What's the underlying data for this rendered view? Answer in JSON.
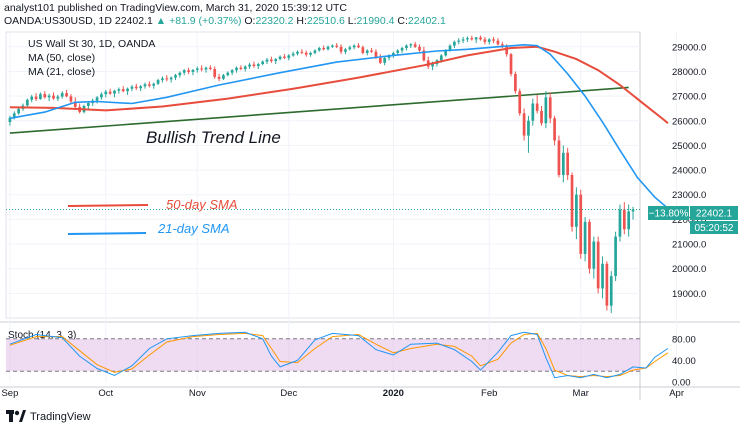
{
  "header": {
    "publisher_line": "analyst101 published on TradingView.com, March 31, 2020 15:39:12 UTC",
    "symbol": "OANDA:US30USD, 1D",
    "last": "22402.1",
    "change": "▲ +81.9 (+0.37%)",
    "o_label": "O:",
    "o_value": "22320.2",
    "h_label": "H:",
    "h_value": "22510.6",
    "l_label": "L:",
    "l_value": "21990.4",
    "c_label": "C:",
    "c_value": "22402.1"
  },
  "legend": {
    "symbol_name": "US Wall St 30, 1D, OANDA",
    "ma50": "MA (50, close)",
    "ma21": "MA (21, close)"
  },
  "annotations": {
    "trend_line": "Bullish Trend Line",
    "sma50": "50-day SMA",
    "sma21": "21-day SMA"
  },
  "price_tags": {
    "change_pct": "−13.80%",
    "price": "22402.1",
    "countdown": "05:20:52"
  },
  "stoch_label": "Stoch (14, 3, 3)",
  "footer": {
    "brand": "TradingView"
  },
  "colors": {
    "up": "#26a69a",
    "down": "#ef5350",
    "ma50": "#e74c3c",
    "ma21": "#2196f3",
    "trend": "#2e6b2e",
    "stoch_bg": "#e1bee7",
    "stoch_k": "#2196f3",
    "stoch_d": "#ff9800"
  },
  "chart_data": {
    "type": "candlestick",
    "y_ticks": [
      19000,
      20000,
      21000,
      22000,
      23000,
      24000,
      25000,
      26000,
      27000,
      28000,
      29000
    ],
    "ylim": [
      18000,
      29600
    ],
    "x_ticks": [
      "Sep",
      "Oct",
      "Nov",
      "Dec",
      "2020",
      "Feb",
      "Mar",
      "Apr"
    ],
    "x_tick_days": [
      0,
      22,
      43,
      64,
      88,
      110,
      131,
      153
    ],
    "candles": [
      [
        25950,
        26200,
        25800,
        26120
      ],
      [
        26120,
        26380,
        26050,
        26300
      ],
      [
        26300,
        26550,
        26250,
        26480
      ],
      [
        26480,
        26700,
        26400,
        26620
      ],
      [
        26620,
        26900,
        26550,
        26850
      ],
      [
        26850,
        27050,
        26750,
        26980
      ],
      [
        26980,
        27120,
        26800,
        26880
      ],
      [
        26880,
        27150,
        26850,
        27080
      ],
      [
        27080,
        27200,
        26900,
        26950
      ],
      [
        26950,
        27100,
        26800,
        27020
      ],
      [
        27020,
        27150,
        26850,
        26900
      ],
      [
        26900,
        27050,
        26800,
        26980
      ],
      [
        26980,
        27200,
        26900,
        27120
      ],
      [
        27120,
        27250,
        26950,
        26990
      ],
      [
        26990,
        27080,
        26700,
        26780
      ],
      [
        26780,
        26950,
        26500,
        26560
      ],
      [
        26560,
        26700,
        26300,
        26350
      ],
      [
        26350,
        26650,
        26300,
        26600
      ],
      [
        26600,
        26800,
        26450,
        26720
      ],
      [
        26720,
        26900,
        26600,
        26820
      ],
      [
        26820,
        27000,
        26700,
        26950
      ],
      [
        26950,
        27150,
        26850,
        27080
      ],
      [
        27080,
        27250,
        26950,
        27180
      ],
      [
        27180,
        27300,
        27050,
        27100
      ],
      [
        27100,
        27250,
        26950,
        27220
      ],
      [
        27220,
        27350,
        27100,
        27280
      ],
      [
        27280,
        27400,
        27150,
        27200
      ],
      [
        27200,
        27350,
        27050,
        27300
      ],
      [
        27300,
        27450,
        27200,
        27380
      ],
      [
        27380,
        27500,
        27250,
        27320
      ],
      [
        27320,
        27450,
        27200,
        27400
      ],
      [
        27400,
        27550,
        27300,
        27480
      ],
      [
        27480,
        27600,
        27350,
        27420
      ],
      [
        27420,
        27550,
        27300,
        27500
      ],
      [
        27500,
        27700,
        27450,
        27650
      ],
      [
        27650,
        27800,
        27550,
        27720
      ],
      [
        27720,
        27850,
        27600,
        27680
      ],
      [
        27680,
        27800,
        27550,
        27750
      ],
      [
        27750,
        27900,
        27650,
        27850
      ],
      [
        27850,
        28000,
        27750,
        27950
      ],
      [
        27950,
        28100,
        27850,
        28050
      ],
      [
        28050,
        28150,
        27900,
        27980
      ],
      [
        27980,
        28100,
        27850,
        28060
      ],
      [
        28060,
        28200,
        27950,
        28120
      ],
      [
        28120,
        28250,
        28000,
        28080
      ],
      [
        28080,
        28200,
        27950,
        28150
      ],
      [
        28150,
        28250,
        28050,
        28100
      ],
      [
        28100,
        28200,
        27700,
        27780
      ],
      [
        27780,
        27900,
        27600,
        27700
      ],
      [
        27700,
        27900,
        27650,
        27850
      ],
      [
        27850,
        28000,
        27800,
        27950
      ],
      [
        27950,
        28100,
        27850,
        28050
      ],
      [
        28050,
        28200,
        27950,
        28150
      ],
      [
        28150,
        28250,
        28050,
        28100
      ],
      [
        28100,
        28250,
        28000,
        28200
      ],
      [
        28200,
        28350,
        28100,
        28280
      ],
      [
        28280,
        28400,
        28150,
        28220
      ],
      [
        28220,
        28350,
        28100,
        28300
      ],
      [
        28300,
        28450,
        28250,
        28400
      ],
      [
        28400,
        28550,
        28300,
        28480
      ],
      [
        28480,
        28600,
        28350,
        28420
      ],
      [
        28420,
        28550,
        28300,
        28500
      ],
      [
        28500,
        28650,
        28450,
        28600
      ],
      [
        28600,
        28700,
        28500,
        28550
      ],
      [
        28550,
        28700,
        28450,
        28650
      ],
      [
        28650,
        28800,
        28600,
        28720
      ],
      [
        28720,
        28850,
        28650,
        28800
      ],
      [
        28800,
        28900,
        28700,
        28760
      ],
      [
        28760,
        28850,
        28600,
        28680
      ],
      [
        28680,
        28800,
        28600,
        28750
      ],
      [
        28750,
        28900,
        28700,
        28850
      ],
      [
        28850,
        29000,
        28800,
        28950
      ],
      [
        28950,
        29050,
        28850,
        28900
      ],
      [
        28900,
        29050,
        28850,
        29000
      ],
      [
        29000,
        29100,
        28950,
        29050
      ],
      [
        29050,
        29150,
        28950,
        29000
      ],
      [
        29000,
        29100,
        28700,
        28800
      ],
      [
        28800,
        28950,
        28700,
        28900
      ],
      [
        28900,
        29050,
        28850,
        28980
      ],
      [
        28980,
        29100,
        28900,
        29050
      ],
      [
        29050,
        29150,
        28950,
        28980
      ],
      [
        28980,
        29050,
        28700,
        28750
      ],
      [
        28750,
        28900,
        28650,
        28850
      ],
      [
        28850,
        28950,
        28750,
        28800
      ],
      [
        28800,
        28900,
        28500,
        28550
      ],
      [
        28550,
        28700,
        28300,
        28350
      ],
      [
        28350,
        28600,
        28250,
        28550
      ],
      [
        28550,
        28700,
        28450,
        28650
      ],
      [
        28650,
        28800,
        28550,
        28750
      ],
      [
        28750,
        28900,
        28650,
        28850
      ],
      [
        28850,
        29000,
        28750,
        28950
      ],
      [
        28950,
        29100,
        28850,
        29050
      ],
      [
        29050,
        29150,
        28950,
        29100
      ],
      [
        29100,
        29200,
        28950,
        29000
      ],
      [
        29000,
        29100,
        28800,
        28850
      ],
      [
        28850,
        29000,
        28400,
        28450
      ],
      [
        28450,
        28600,
        28100,
        28200
      ],
      [
        28200,
        28400,
        28050,
        28300
      ],
      [
        28300,
        28500,
        28200,
        28450
      ],
      [
        28450,
        28700,
        28350,
        28650
      ],
      [
        28650,
        28900,
        28600,
        28850
      ],
      [
        28850,
        29100,
        28800,
        29050
      ],
      [
        29050,
        29250,
        28950,
        29200
      ],
      [
        29200,
        29350,
        29100,
        29250
      ],
      [
        29250,
        29400,
        29150,
        29300
      ],
      [
        29300,
        29420,
        29200,
        29350
      ],
      [
        29350,
        29450,
        29250,
        29300
      ],
      [
        29300,
        29400,
        29150,
        29380
      ],
      [
        29380,
        29450,
        29250,
        29300
      ],
      [
        29300,
        29400,
        29100,
        29200
      ],
      [
        29200,
        29350,
        29100,
        29300
      ],
      [
        29300,
        29400,
        29150,
        29250
      ],
      [
        29250,
        29350,
        29050,
        29100
      ],
      [
        29100,
        29200,
        28950,
        29050
      ],
      [
        29050,
        29100,
        28600,
        28700
      ],
      [
        28700,
        28750,
        27800,
        27900
      ],
      [
        27900,
        28000,
        27100,
        27200
      ],
      [
        27200,
        27300,
        26200,
        26300
      ],
      [
        26300,
        26500,
        25200,
        25400
      ],
      [
        25400,
        26200,
        24700,
        26000
      ],
      [
        26000,
        26900,
        25800,
        26700
      ],
      [
        26700,
        27050,
        26300,
        26400
      ],
      [
        26400,
        26600,
        25800,
        25900
      ],
      [
        25900,
        27200,
        25700,
        26950
      ],
      [
        26950,
        27150,
        25900,
        26100
      ],
      [
        26100,
        26200,
        25000,
        25200
      ],
      [
        25200,
        25400,
        23700,
        23800
      ],
      [
        23800,
        25000,
        23500,
        24700
      ],
      [
        24700,
        24900,
        23600,
        23800
      ],
      [
        23800,
        23900,
        21500,
        21700
      ],
      [
        21700,
        23300,
        21200,
        23000
      ],
      [
        23000,
        23200,
        20400,
        20600
      ],
      [
        20600,
        22100,
        20300,
        21900
      ],
      [
        21900,
        22000,
        19800,
        20000
      ],
      [
        20000,
        21300,
        19600,
        21100
      ],
      [
        21100,
        21300,
        19000,
        19200
      ],
      [
        19200,
        20500,
        18800,
        20200
      ],
      [
        20200,
        20300,
        18300,
        18500
      ],
      [
        18500,
        19900,
        18200,
        19700
      ],
      [
        19700,
        21500,
        19500,
        21300
      ],
      [
        21300,
        22600,
        21100,
        22400
      ],
      [
        22400,
        22700,
        21400,
        21600
      ],
      [
        21600,
        22600,
        21300,
        22320
      ],
      [
        22320,
        22510.6,
        21990.4,
        22402.1
      ]
    ],
    "ma50": [
      [
        0,
        26550
      ],
      [
        10,
        26520
      ],
      [
        22,
        26420
      ],
      [
        35,
        26580
      ],
      [
        50,
        26900
      ],
      [
        65,
        27300
      ],
      [
        80,
        27750
      ],
      [
        95,
        28250
      ],
      [
        105,
        28650
      ],
      [
        115,
        28950
      ],
      [
        121,
        29000
      ],
      [
        125,
        28800
      ],
      [
        130,
        28500
      ],
      [
        135,
        28050
      ],
      [
        140,
        27450
      ],
      [
        145,
        26750
      ],
      [
        150,
        26050
      ],
      [
        151,
        25900
      ]
    ],
    "ma21": [
      [
        0,
        26100
      ],
      [
        8,
        26350
      ],
      [
        15,
        26750
      ],
      [
        20,
        26780
      ],
      [
        28,
        26700
      ],
      [
        36,
        26950
      ],
      [
        48,
        27450
      ],
      [
        62,
        27950
      ],
      [
        75,
        28380
      ],
      [
        88,
        28650
      ],
      [
        98,
        28830
      ],
      [
        105,
        28900
      ],
      [
        112,
        29000
      ],
      [
        118,
        29080
      ],
      [
        121,
        29050
      ],
      [
        124,
        28700
      ],
      [
        128,
        27900
      ],
      [
        132,
        27000
      ],
      [
        136,
        25950
      ],
      [
        140,
        24800
      ],
      [
        144,
        23700
      ],
      [
        148,
        22900
      ],
      [
        151,
        22450
      ]
    ],
    "trend_line": [
      [
        0,
        25500
      ],
      [
        142,
        27350
      ]
    ],
    "stochastic": {
      "name": "Stoch (14, 3, 3)",
      "ylim": [
        0,
        100
      ],
      "levels": [
        20,
        80
      ],
      "y_ticks": [
        0,
        40,
        80
      ],
      "k": [
        [
          0,
          70
        ],
        [
          6,
          88
        ],
        [
          12,
          82
        ],
        [
          16,
          48
        ],
        [
          20,
          25
        ],
        [
          24,
          12
        ],
        [
          28,
          30
        ],
        [
          32,
          62
        ],
        [
          36,
          80
        ],
        [
          42,
          86
        ],
        [
          48,
          90
        ],
        [
          54,
          92
        ],
        [
          58,
          80
        ],
        [
          60,
          48
        ],
        [
          62,
          28
        ],
        [
          66,
          40
        ],
        [
          70,
          78
        ],
        [
          74,
          90
        ],
        [
          80,
          86
        ],
        [
          84,
          60
        ],
        [
          88,
          50
        ],
        [
          92,
          70
        ],
        [
          98,
          72
        ],
        [
          102,
          60
        ],
        [
          106,
          38
        ],
        [
          108,
          22
        ],
        [
          112,
          55
        ],
        [
          115,
          86
        ],
        [
          118,
          92
        ],
        [
          121,
          88
        ],
        [
          123,
          45
        ],
        [
          125,
          8
        ],
        [
          128,
          12
        ],
        [
          131,
          8
        ],
        [
          134,
          14
        ],
        [
          137,
          8
        ],
        [
          140,
          14
        ],
        [
          143,
          28
        ],
        [
          146,
          26
        ],
        [
          148,
          46
        ],
        [
          151,
          62
        ]
      ],
      "d": [
        [
          0,
          68
        ],
        [
          6,
          84
        ],
        [
          12,
          84
        ],
        [
          16,
          58
        ],
        [
          20,
          32
        ],
        [
          24,
          18
        ],
        [
          28,
          24
        ],
        [
          32,
          50
        ],
        [
          36,
          74
        ],
        [
          42,
          84
        ],
        [
          48,
          88
        ],
        [
          54,
          90
        ],
        [
          58,
          86
        ],
        [
          60,
          62
        ],
        [
          62,
          38
        ],
        [
          66,
          36
        ],
        [
          70,
          62
        ],
        [
          74,
          84
        ],
        [
          80,
          88
        ],
        [
          84,
          70
        ],
        [
          88,
          54
        ],
        [
          92,
          62
        ],
        [
          98,
          70
        ],
        [
          102,
          66
        ],
        [
          106,
          48
        ],
        [
          108,
          30
        ],
        [
          112,
          42
        ],
        [
          115,
          72
        ],
        [
          118,
          88
        ],
        [
          121,
          90
        ],
        [
          123,
          62
        ],
        [
          125,
          22
        ],
        [
          128,
          12
        ],
        [
          131,
          10
        ],
        [
          134,
          12
        ],
        [
          137,
          10
        ],
        [
          140,
          12
        ],
        [
          143,
          22
        ],
        [
          146,
          26
        ],
        [
          148,
          38
        ],
        [
          151,
          54
        ]
      ]
    }
  }
}
